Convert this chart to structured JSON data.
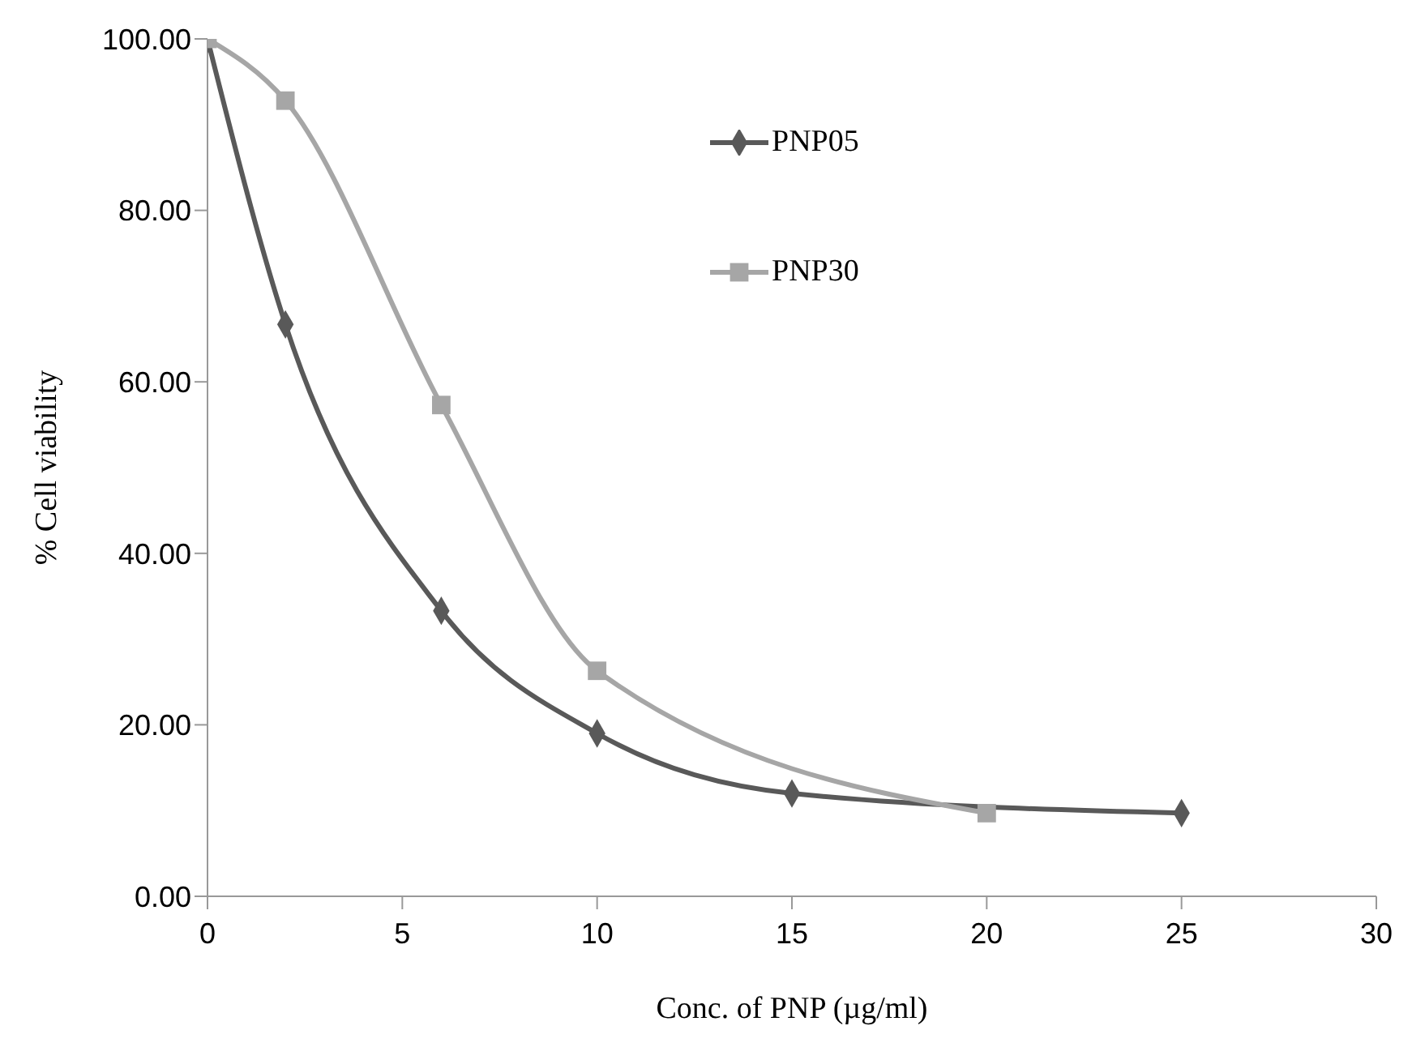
{
  "chart_data": {
    "type": "line",
    "xlabel": "Conc. of  PNP (µg/ml)",
    "ylabel": "% Cell viability",
    "xlim": [
      0,
      30
    ],
    "xticks": [
      0,
      5,
      10,
      15,
      20,
      25,
      30
    ],
    "ylim": [
      0,
      100
    ],
    "yticks": [
      {
        "value": 0,
        "label": "0.00"
      },
      {
        "value": 20,
        "label": "20.00"
      },
      {
        "value": 40,
        "label": "40.00"
      },
      {
        "value": 60,
        "label": "60.00"
      },
      {
        "value": 80,
        "label": "80.00"
      },
      {
        "value": 100,
        "label": "100.00"
      }
    ],
    "grid": false,
    "legend": "top",
    "series": [
      {
        "name": "PNP05",
        "color": "#595959",
        "marker": "diamond",
        "x": [
          0,
          2,
          6,
          10,
          15,
          25
        ],
        "values": [
          100,
          66.7,
          33.3,
          19.0,
          12.0,
          9.7
        ]
      },
      {
        "name": "PNP30",
        "color": "#a6a6a6",
        "marker": "square",
        "x": [
          0,
          2,
          6,
          10,
          20
        ],
        "values": [
          100,
          92.8,
          57.3,
          26.3,
          9.7
        ]
      }
    ]
  }
}
